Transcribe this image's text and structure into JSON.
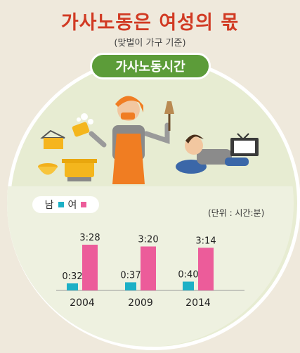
{
  "header": {
    "title": "가사노동은 여성의 몫",
    "subtitle": "(맞벌이 가구 기준)"
  },
  "badge": {
    "label": "가사노동시간"
  },
  "legend": {
    "male_label": "남",
    "female_label": "여"
  },
  "unit_note": "(단위 : 시간:분)",
  "colors": {
    "male": "#1cb0c6",
    "female": "#ec5c9a",
    "title": "#d13a23",
    "badge": "#5c9c39"
  },
  "chart_data": {
    "type": "bar",
    "categories": [
      "2004",
      "2009",
      "2014"
    ],
    "series": [
      {
        "name": "남",
        "values": [
          32,
          37,
          40
        ],
        "labels": [
          "0:32",
          "0:37",
          "0:40"
        ]
      },
      {
        "name": "여",
        "values": [
          208,
          200,
          194
        ],
        "labels": [
          "3:28",
          "3:20",
          "3:14"
        ]
      }
    ],
    "unit": "시간:분",
    "ylim": [
      0,
      240
    ]
  }
}
